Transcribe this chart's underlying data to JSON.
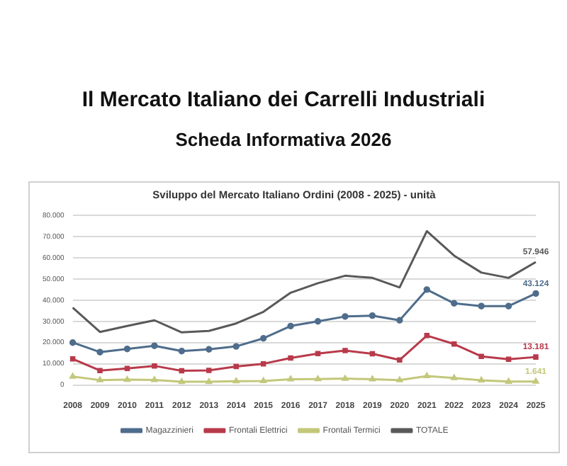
{
  "chart_data": {
    "type": "line",
    "title": "Il Mercato Italiano dei Carrelli Industriali",
    "subtitle": "Scheda Informativa 2026",
    "annotations": [
      "Sviluppo del Mercato Italiano Ordini (2008 - 2025) - unità"
    ],
    "categories": [
      "2008",
      "2009",
      "2010",
      "2011",
      "2012",
      "2013",
      "2014",
      "2015",
      "2016",
      "2017",
      "2018",
      "2019",
      "2020",
      "2021",
      "2022",
      "2023",
      "2024",
      "2025"
    ],
    "series": [
      {
        "name": "Magazzinieri",
        "color": "#4f6d8c",
        "marker": "circle",
        "values": [
          20000,
          15500,
          17000,
          18500,
          16000,
          16800,
          18200,
          22000,
          27800,
          30000,
          32300,
          32700,
          30500,
          45000,
          38500,
          37200,
          37200,
          43124
        ],
        "value_labels": [
          null,
          null,
          null,
          null,
          null,
          null,
          null,
          null,
          null,
          null,
          null,
          null,
          null,
          null,
          null,
          null,
          null,
          "43.124"
        ]
      },
      {
        "name": "Frontali Elettrici",
        "color": "#b83a4b",
        "marker": "square",
        "values": [
          12300,
          6800,
          7800,
          9000,
          6700,
          6900,
          8700,
          10000,
          12700,
          14800,
          16200,
          14700,
          11800,
          23300,
          19300,
          13500,
          12100,
          13181
        ],
        "value_labels": [
          null,
          null,
          null,
          null,
          null,
          null,
          null,
          null,
          null,
          null,
          null,
          null,
          null,
          null,
          null,
          null,
          null,
          "13.181"
        ]
      },
      {
        "name": "Frontali Termici",
        "color": "#c3c77a",
        "marker": "triangle",
        "values": [
          4000,
          2300,
          2500,
          2400,
          1500,
          1500,
          1800,
          1900,
          2700,
          2800,
          3000,
          2700,
          2300,
          4200,
          3300,
          2200,
          1600,
          1641
        ],
        "value_labels": [
          null,
          null,
          null,
          null,
          null,
          null,
          null,
          null,
          null,
          null,
          null,
          null,
          null,
          null,
          null,
          null,
          null,
          "1.641"
        ]
      },
      {
        "name": "TOTALE",
        "color": "#595959",
        "marker": "none",
        "values": [
          36500,
          25000,
          27800,
          30500,
          24800,
          25500,
          29000,
          34500,
          43500,
          48000,
          51500,
          50500,
          46000,
          72500,
          61000,
          53000,
          50500,
          57946
        ],
        "value_labels": [
          null,
          null,
          null,
          null,
          null,
          null,
          null,
          null,
          null,
          null,
          null,
          null,
          null,
          null,
          null,
          null,
          null,
          "57.946"
        ]
      }
    ],
    "ylim": [
      0,
      80000
    ],
    "yticks": [
      0,
      {
        "value": 10000,
        "label": "10.000"
      },
      {
        "value": 20000,
        "label": "20.000"
      },
      {
        "value": 30000,
        "label": "30.000"
      },
      {
        "value": 40000,
        "label": "40.000"
      },
      {
        "value": 50000,
        "label": "50.000"
      },
      {
        "value": 60000,
        "label": "60.000"
      },
      {
        "value": 70000,
        "label": "70.000"
      },
      {
        "value": 80000,
        "label": "80.000"
      }
    ],
    "grid": "y",
    "legend": "bottom",
    "line_style": "solid"
  }
}
